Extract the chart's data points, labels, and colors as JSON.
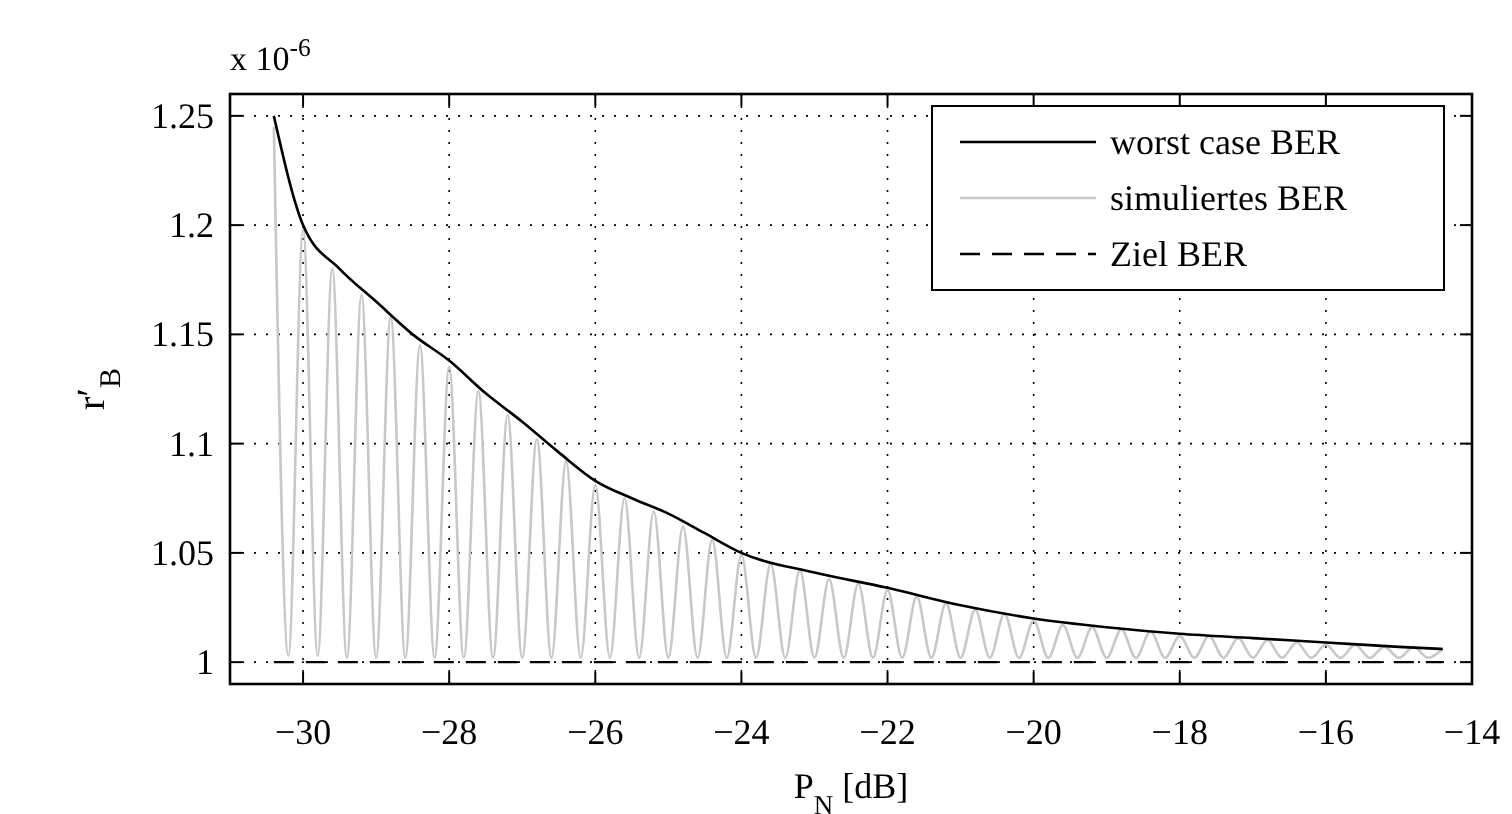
{
  "chart_data": {
    "type": "line",
    "xlabel": "P$_{N}$ [dB]",
    "ylabel": "r′$_{B}$",
    "annotations": [
      "x 10$^{-6}$"
    ],
    "xlim": [
      -31,
      -14
    ],
    "xticks": [
      -30,
      -28,
      -26,
      -24,
      -22,
      -20,
      -18,
      -16,
      -14
    ],
    "ylim": [
      0.99,
      1.26
    ],
    "yticks": [
      1,
      1.05,
      1.1,
      1.15,
      1.2,
      1.25
    ],
    "grid": true,
    "legend": "top right",
    "marker": "none",
    "series": [
      {
        "name": "worst case BER",
        "color": "#000000",
        "line_style": "solid",
        "x": [
          -30.4,
          -30,
          -29.5,
          -29,
          -28.5,
          -28,
          -27.5,
          -27,
          -26.5,
          -26,
          -25.5,
          -25,
          -24.5,
          -24,
          -23,
          -22,
          -21,
          -20,
          -19,
          -18,
          -17,
          -16,
          -15,
          -14.4
        ],
        "values": [
          1.25,
          1.2,
          1.18,
          1.165,
          1.15,
          1.138,
          1.123,
          1.11,
          1.096,
          1.083,
          1.075,
          1.068,
          1.059,
          1.05,
          1.041,
          1.034,
          1.026,
          1.02,
          1.016,
          1.013,
          1.011,
          1.009,
          1.007,
          1.006
        ]
      },
      {
        "name": "simuliertes BER",
        "color": "#c8c8c8",
        "line_style": "solid",
        "x": [
          -30.4,
          -30.2,
          -30,
          -29.8,
          -29.6,
          -29.4,
          -29.2,
          -29,
          -28.8,
          -28.6,
          -28.4,
          -28.2,
          -28,
          -27.8,
          -27.6,
          -27.4,
          -27.2,
          -27,
          -26.8,
          -26.6,
          -26.4,
          -26.2,
          -26,
          -25.8,
          -25.6,
          -25.4,
          -25.2,
          -25,
          -24.8,
          -24.6,
          -24.4,
          -24.2,
          -24,
          -23.8,
          -23.6,
          -23.4,
          -23.2,
          -23,
          -22.8,
          -22.6,
          -22.4,
          -22.2,
          -22,
          -21.8,
          -21.6,
          -21.4,
          -21.2,
          -21,
          -20.8,
          -20.6,
          -20.4,
          -20.2,
          -20,
          -19.8,
          -19.6,
          -19.4,
          -19.2,
          -19,
          -18.8,
          -18.6,
          -18.4,
          -18.2,
          -18,
          -17.8,
          -17.6,
          -17.4,
          -17.2,
          -17,
          -16.8,
          -16.6,
          -16.4,
          -16.2,
          -16,
          -15.8,
          -15.6,
          -15.4,
          -15.2,
          -15,
          -14.8,
          -14.6,
          -14.4
        ],
        "values": [
          1.245,
          1.003,
          1.198,
          1.003,
          1.18,
          1.002,
          1.168,
          1.002,
          1.158,
          1.002,
          1.145,
          1.002,
          1.135,
          1.002,
          1.124,
          1.002,
          1.113,
          1.002,
          1.102,
          1.002,
          1.092,
          1.002,
          1.081,
          1.002,
          1.075,
          1.002,
          1.069,
          1.002,
          1.062,
          1.002,
          1.056,
          1.002,
          1.049,
          1.002,
          1.045,
          1.002,
          1.042,
          1.002,
          1.038,
          1.002,
          1.036,
          1.002,
          1.033,
          1.002,
          1.03,
          1.002,
          1.027,
          1.002,
          1.024,
          1.002,
          1.022,
          1.002,
          1.019,
          1.002,
          1.017,
          1.002,
          1.016,
          1.002,
          1.015,
          1.002,
          1.014,
          1.002,
          1.012,
          1.002,
          1.012,
          1.002,
          1.011,
          1.002,
          1.01,
          1.002,
          1.009,
          1.002,
          1.008,
          1.002,
          1.008,
          1.002,
          1.007,
          1.002,
          1.007,
          1.002,
          1.006
        ]
      },
      {
        "name": "Ziel BER",
        "color": "#000000",
        "line_style": "dashed",
        "x": [
          -30.4,
          -14.4
        ],
        "values": [
          1,
          1
        ]
      }
    ]
  }
}
